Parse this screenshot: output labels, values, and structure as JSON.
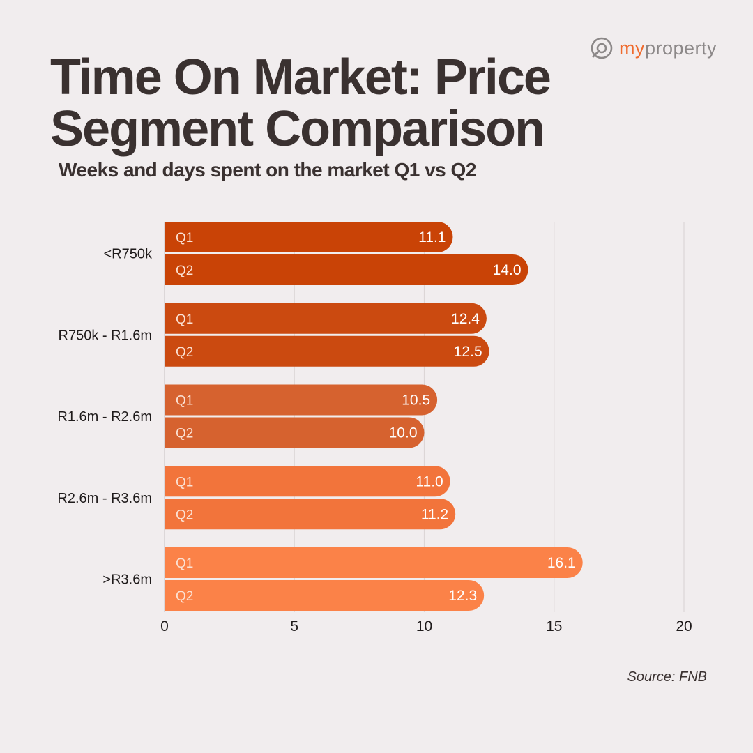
{
  "brand": {
    "name_my": "my",
    "name_property": "property",
    "logo_icon": "magnifier-house-icon"
  },
  "title": "Time On Market: Price Segment Comparison",
  "subtitle": "Weeks and days spent on the market Q1 vs Q2",
  "source": "Source: FNB",
  "colors": {
    "background": "#f1edee",
    "text": "#3a3130",
    "segment_colors": [
      "#c94306",
      "#cb4a10",
      "#d6622f",
      "#f2743b",
      "#fb8248"
    ]
  },
  "chart_data": {
    "type": "bar",
    "orientation": "horizontal",
    "categories": [
      "<R750k",
      "R750k - R1.6m",
      "R1.6m - R2.6m",
      "R2.6m - R3.6m",
      ">R3.6m"
    ],
    "series": [
      {
        "name": "Q1",
        "values": [
          11.1,
          12.4,
          10.5,
          11.0,
          16.1
        ],
        "labels": [
          "11.1",
          "12.4",
          "10.5",
          "11.0",
          "16.1"
        ]
      },
      {
        "name": "Q2",
        "values": [
          14.0,
          12.5,
          10.0,
          11.2,
          12.3
        ],
        "labels": [
          "14.0",
          "12.5",
          "10.0",
          "11.2",
          "12.3"
        ]
      }
    ],
    "xlim": [
      0,
      20
    ],
    "xticks": [
      0,
      5,
      10,
      15,
      20
    ],
    "grid": true,
    "xlabel": "",
    "ylabel": ""
  }
}
